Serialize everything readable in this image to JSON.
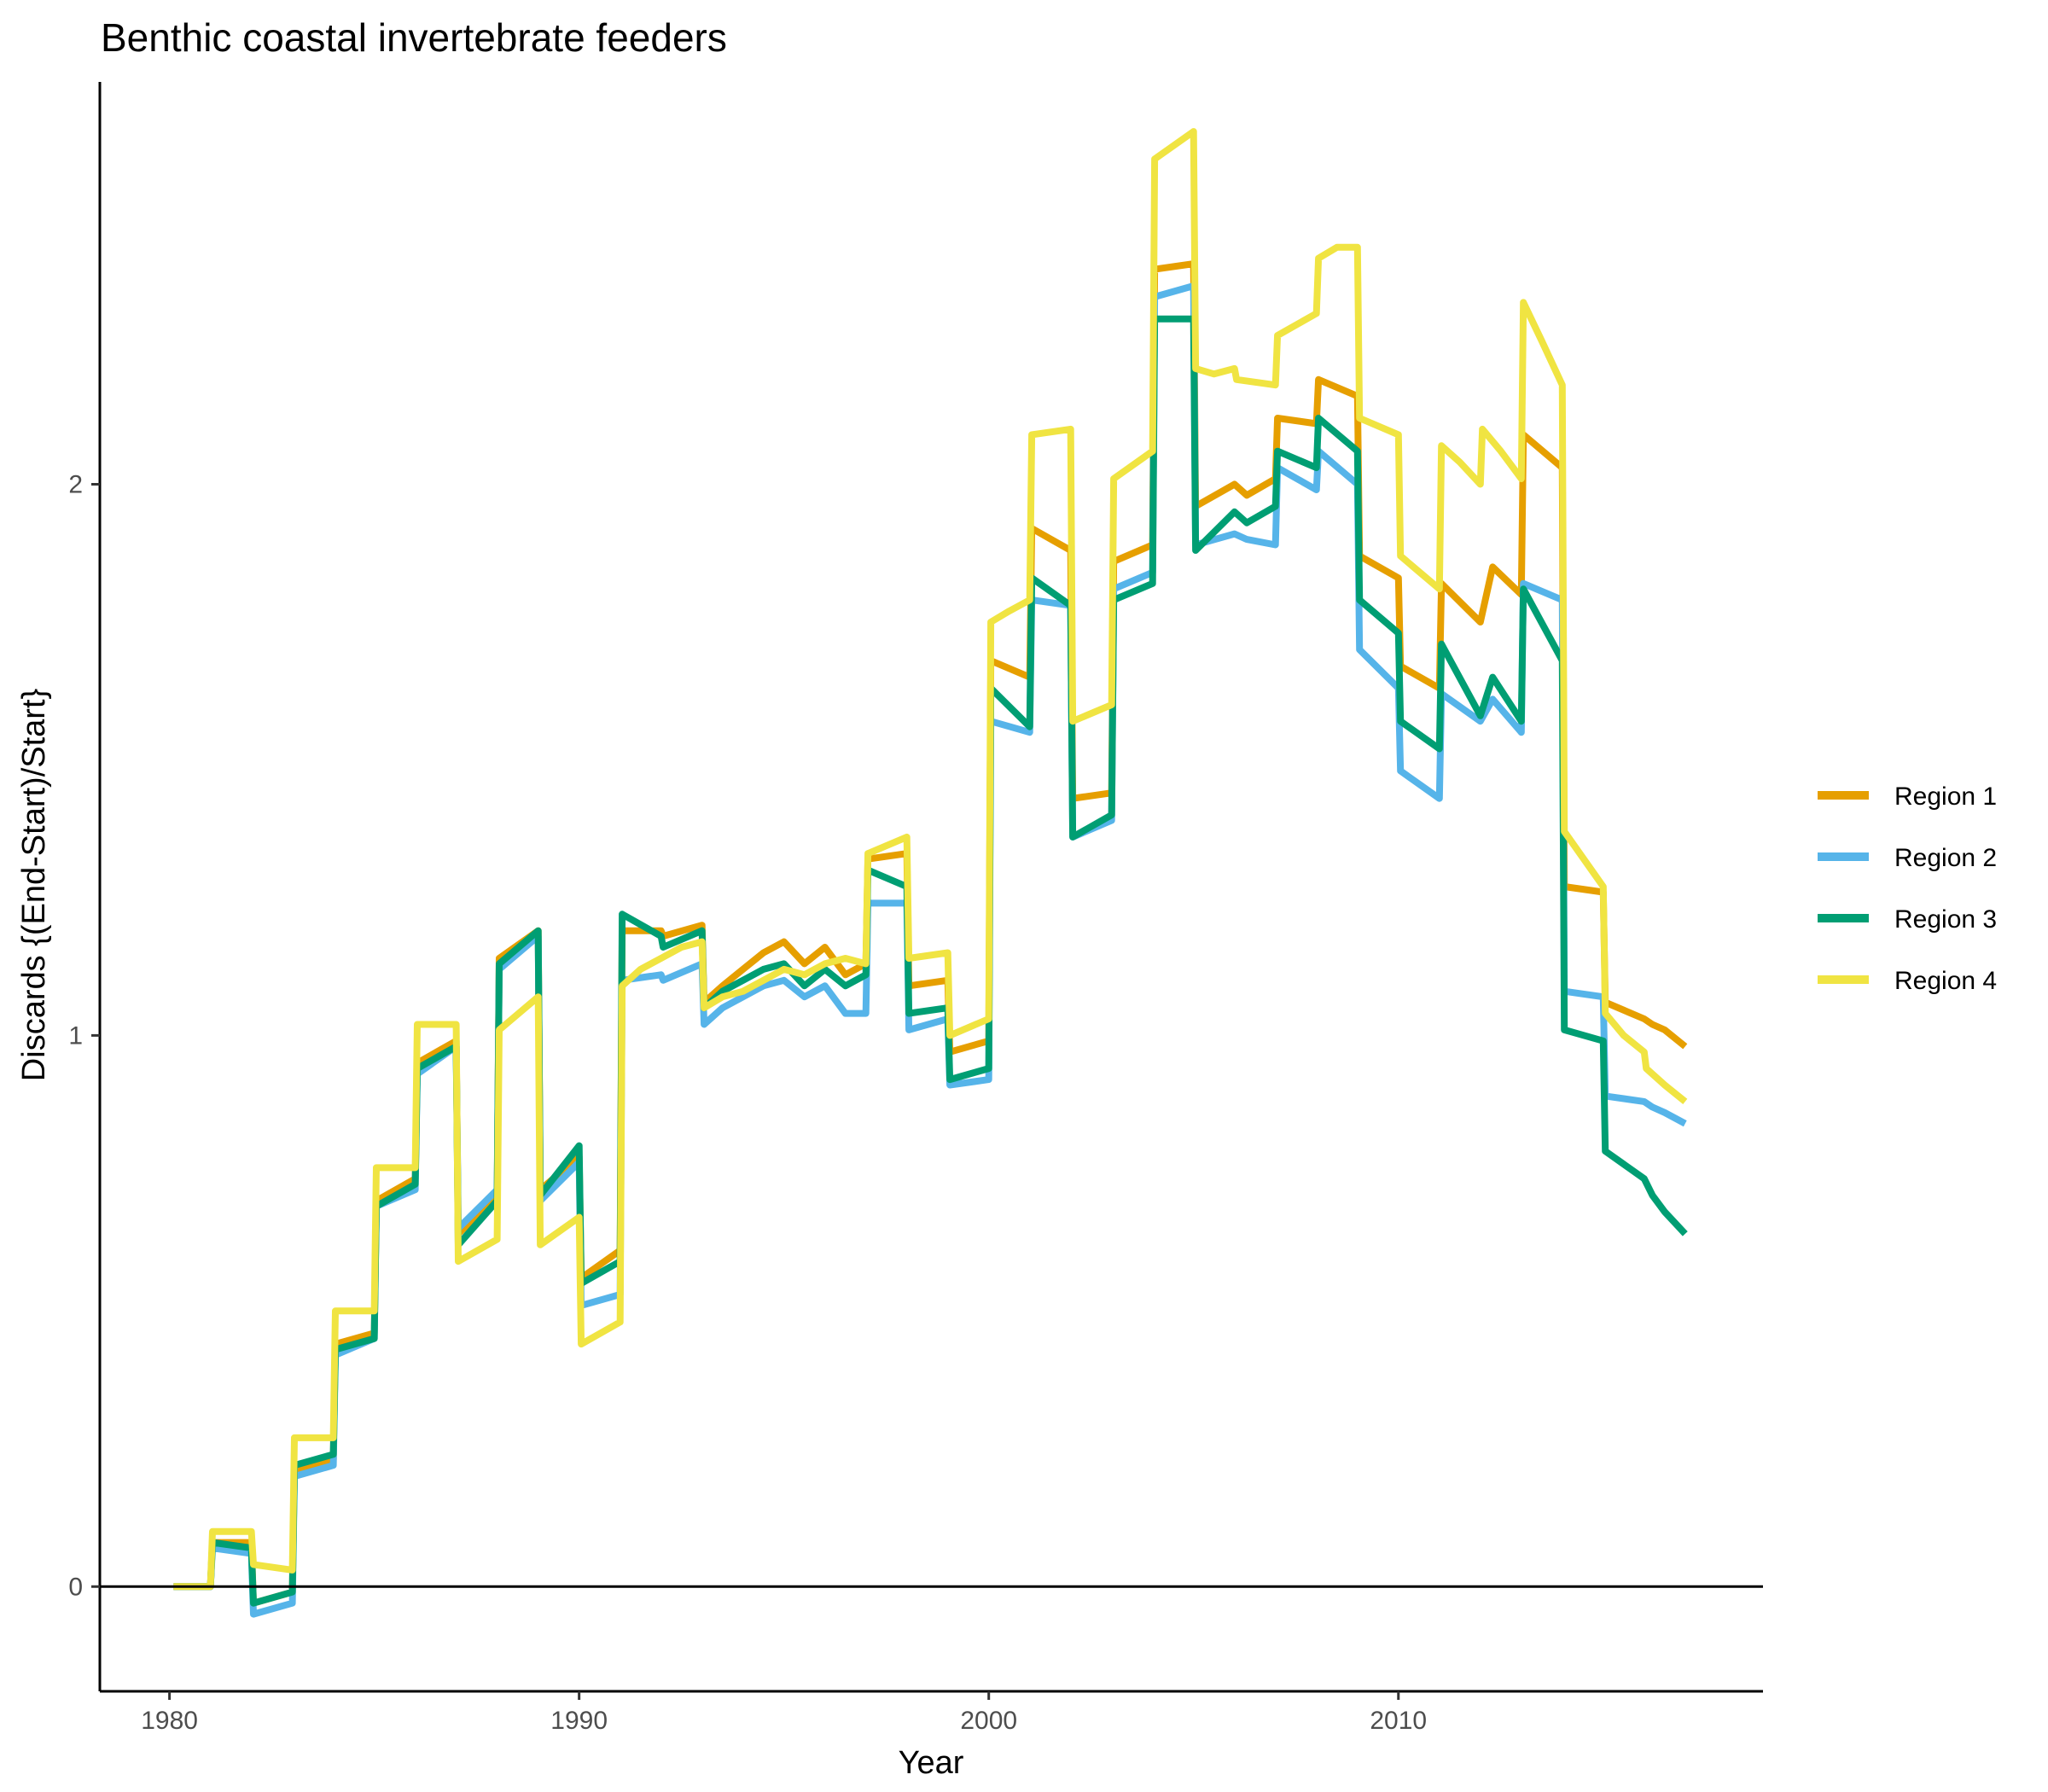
{
  "chart_data": {
    "type": "line",
    "title": "Benthic coastal invertebrate feeders",
    "xlabel": "Year",
    "ylabel": "Discards {(End-Start)/Start}",
    "xlim": [
      1978.3,
      2018.9
    ],
    "ylim": [
      -0.19,
      2.73
    ],
    "xticks": [
      1980,
      1990,
      2000,
      2010
    ],
    "yticks": [
      0,
      1,
      2
    ],
    "zero_line": true,
    "grid": false,
    "legend_position": "right",
    "series": [
      {
        "name": "Region 1",
        "color": "#E69F00",
        "x": [
          1980.1,
          1981.0,
          1981.05,
          1982.0,
          1982.05,
          1983.0,
          1983.05,
          1984.0,
          1984.05,
          1985.0,
          1985.05,
          1986.0,
          1986.05,
          1987.0,
          1987.05,
          1988.0,
          1988.05,
          1989.0,
          1989.05,
          1990.0,
          1990.05,
          1991.0,
          1991.05,
          1992.0,
          1992.05,
          1993.0,
          1993.05,
          1993.5,
          1994.0,
          1994.5,
          1995.0,
          1995.5,
          1996.0,
          1996.5,
          1997.0,
          1997.05,
          1998.0,
          1998.05,
          1999.0,
          1999.05,
          2000.0,
          2000.05,
          2001.0,
          2001.05,
          2002.0,
          2002.05,
          2003.0,
          2003.05,
          2004.0,
          2004.05,
          2005.0,
          2005.05,
          2006.0,
          2006.3,
          2007.0,
          2007.05,
          2008.0,
          2008.05,
          2009.0,
          2009.05,
          2010.0,
          2010.05,
          2011.0,
          2011.05,
          2012.0,
          2012.3,
          2013.0,
          2013.05,
          2014.0,
          2014.05,
          2015.0,
          2015.05,
          2016.0,
          2016.2,
          2016.5,
          2017.0
        ],
        "y": [
          0,
          0,
          0.08,
          0.08,
          -0.03,
          -0.01,
          0.21,
          0.23,
          0.44,
          0.46,
          0.7,
          0.74,
          0.95,
          0.99,
          0.64,
          0.71,
          1.14,
          1.19,
          0.72,
          0.78,
          0.56,
          0.61,
          1.19,
          1.19,
          1.18,
          1.2,
          1.06,
          1.09,
          1.12,
          1.15,
          1.17,
          1.13,
          1.16,
          1.11,
          1.13,
          1.32,
          1.33,
          1.09,
          1.1,
          0.97,
          0.99,
          1.68,
          1.65,
          1.92,
          1.88,
          1.43,
          1.44,
          1.86,
          1.89,
          2.39,
          2.4,
          1.96,
          2.0,
          1.98,
          2.01,
          2.12,
          2.11,
          2.19,
          2.16,
          1.87,
          1.83,
          1.67,
          1.63,
          1.82,
          1.75,
          1.85,
          1.8,
          2.09,
          2.03,
          1.27,
          1.26,
          1.06,
          1.03,
          1.02,
          1.01,
          0.98
        ]
      },
      {
        "name": "Region 2",
        "color": "#56B4E9",
        "x": [
          1980.1,
          1981.0,
          1981.05,
          1982.0,
          1982.05,
          1983.0,
          1983.05,
          1984.0,
          1984.05,
          1985.0,
          1985.05,
          1986.0,
          1986.05,
          1987.0,
          1987.05,
          1988.0,
          1988.05,
          1989.0,
          1989.05,
          1990.0,
          1990.05,
          1991.0,
          1991.05,
          1992.0,
          1992.05,
          1993.0,
          1993.05,
          1993.5,
          1994.0,
          1994.5,
          1995.0,
          1995.5,
          1996.0,
          1996.5,
          1997.0,
          1997.05,
          1998.0,
          1998.05,
          1999.0,
          1999.05,
          2000.0,
          2000.05,
          2001.0,
          2001.05,
          2002.0,
          2002.05,
          2003.0,
          2003.05,
          2004.0,
          2004.05,
          2005.0,
          2005.05,
          2006.0,
          2006.3,
          2007.0,
          2007.05,
          2008.0,
          2008.05,
          2009.0,
          2009.05,
          2010.0,
          2010.05,
          2011.0,
          2011.05,
          2012.0,
          2012.3,
          2013.0,
          2013.05,
          2014.0,
          2014.05,
          2015.0,
          2015.05,
          2016.0,
          2016.2,
          2016.5,
          2017.0
        ],
        "y": [
          0,
          0,
          0.07,
          0.06,
          -0.05,
          -0.03,
          0.2,
          0.22,
          0.42,
          0.45,
          0.69,
          0.72,
          0.93,
          0.98,
          0.65,
          0.72,
          1.12,
          1.18,
          0.7,
          0.77,
          0.51,
          0.53,
          1.1,
          1.11,
          1.1,
          1.13,
          1.02,
          1.05,
          1.07,
          1.09,
          1.1,
          1.07,
          1.09,
          1.04,
          1.04,
          1.24,
          1.24,
          1.01,
          1.03,
          0.91,
          0.92,
          1.57,
          1.55,
          1.79,
          1.78,
          1.36,
          1.39,
          1.81,
          1.84,
          2.34,
          2.36,
          1.89,
          1.91,
          1.9,
          1.89,
          2.03,
          1.99,
          2.06,
          2.0,
          1.7,
          1.63,
          1.48,
          1.43,
          1.62,
          1.57,
          1.61,
          1.55,
          1.82,
          1.79,
          1.08,
          1.07,
          0.89,
          0.88,
          0.87,
          0.86,
          0.84
        ]
      },
      {
        "name": "Region 3",
        "color": "#009E73",
        "x": [
          1980.1,
          1981.0,
          1981.05,
          1982.0,
          1982.05,
          1983.0,
          1983.05,
          1984.0,
          1984.05,
          1985.0,
          1985.05,
          1986.0,
          1986.05,
          1987.0,
          1987.05,
          1988.0,
          1988.05,
          1989.0,
          1989.05,
          1990.0,
          1990.05,
          1991.0,
          1991.05,
          1992.0,
          1992.05,
          1993.0,
          1993.05,
          1993.5,
          1994.0,
          1994.5,
          1995.0,
          1995.5,
          1996.0,
          1996.5,
          1997.0,
          1997.05,
          1998.0,
          1998.05,
          1999.0,
          1999.05,
          2000.0,
          2000.05,
          2001.0,
          2001.05,
          2002.0,
          2002.05,
          2003.0,
          2003.05,
          2004.0,
          2004.05,
          2005.0,
          2005.05,
          2006.0,
          2006.3,
          2007.0,
          2007.05,
          2008.0,
          2008.05,
          2009.0,
          2009.05,
          2010.0,
          2010.05,
          2011.0,
          2011.05,
          2012.0,
          2012.3,
          2013.0,
          2013.05,
          2014.0,
          2014.05,
          2015.0,
          2015.05,
          2016.0,
          2016.2,
          2016.5,
          2017.0
        ],
        "y": [
          0,
          0,
          0.08,
          0.07,
          -0.03,
          -0.01,
          0.22,
          0.24,
          0.43,
          0.45,
          0.69,
          0.73,
          0.94,
          0.98,
          0.62,
          0.7,
          1.13,
          1.19,
          0.71,
          0.8,
          0.55,
          0.59,
          1.22,
          1.18,
          1.16,
          1.19,
          1.05,
          1.08,
          1.1,
          1.12,
          1.13,
          1.09,
          1.12,
          1.09,
          1.11,
          1.3,
          1.27,
          1.04,
          1.05,
          0.92,
          0.94,
          1.63,
          1.56,
          1.83,
          1.78,
          1.36,
          1.4,
          1.79,
          1.82,
          2.3,
          2.3,
          1.88,
          1.95,
          1.93,
          1.96,
          2.06,
          2.03,
          2.12,
          2.06,
          1.79,
          1.73,
          1.57,
          1.52,
          1.71,
          1.58,
          1.65,
          1.57,
          1.81,
          1.68,
          1.01,
          0.99,
          0.79,
          0.74,
          0.71,
          0.68,
          0.64
        ]
      },
      {
        "name": "Region 4",
        "color": "#F0E442",
        "x": [
          1980.1,
          1981.0,
          1981.05,
          1982.0,
          1982.05,
          1983.0,
          1983.05,
          1984.0,
          1984.05,
          1985.0,
          1985.05,
          1986.0,
          1986.05,
          1987.0,
          1987.05,
          1988.0,
          1988.05,
          1989.0,
          1989.05,
          1990.0,
          1990.05,
          1991.0,
          1991.05,
          1991.5,
          1992.0,
          1992.5,
          1993.0,
          1993.05,
          1993.5,
          1994.0,
          1994.5,
          1995.0,
          1995.5,
          1996.0,
          1996.5,
          1997.0,
          1997.05,
          1998.0,
          1998.05,
          1999.0,
          1999.05,
          2000.0,
          2000.05,
          2000.5,
          2001.0,
          2001.05,
          2002.0,
          2002.05,
          2003.0,
          2003.05,
          2004.0,
          2004.05,
          2005.0,
          2005.05,
          2005.5,
          2006.0,
          2006.05,
          2007.0,
          2007.05,
          2008.0,
          2008.05,
          2008.5,
          2009.0,
          2009.05,
          2010.0,
          2010.05,
          2011.0,
          2011.05,
          2011.5,
          2012.0,
          2012.05,
          2012.5,
          2013.0,
          2013.05,
          2013.5,
          2014.0,
          2014.05,
          2015.0,
          2015.05,
          2015.5,
          2016.0,
          2016.05,
          2016.5,
          2017.0
        ],
        "y": [
          0,
          0,
          0.1,
          0.1,
          0.04,
          0.03,
          0.27,
          0.27,
          0.5,
          0.5,
          0.76,
          0.76,
          1.02,
          1.02,
          0.59,
          0.63,
          1.01,
          1.07,
          0.62,
          0.67,
          0.44,
          0.48,
          1.09,
          1.12,
          1.14,
          1.16,
          1.17,
          1.05,
          1.07,
          1.08,
          1.1,
          1.12,
          1.11,
          1.13,
          1.14,
          1.13,
          1.33,
          1.36,
          1.14,
          1.15,
          1.0,
          1.03,
          1.75,
          1.77,
          1.79,
          2.09,
          2.1,
          1.57,
          1.6,
          2.01,
          2.06,
          2.59,
          2.64,
          2.21,
          2.2,
          2.21,
          2.19,
          2.18,
          2.27,
          2.31,
          2.41,
          2.43,
          2.43,
          2.12,
          2.09,
          1.87,
          1.81,
          2.07,
          2.04,
          2.0,
          2.1,
          2.06,
          2.01,
          2.33,
          2.26,
          2.18,
          1.37,
          1.27,
          1.04,
          1.0,
          0.97,
          0.94,
          0.91,
          0.88
        ]
      }
    ]
  }
}
